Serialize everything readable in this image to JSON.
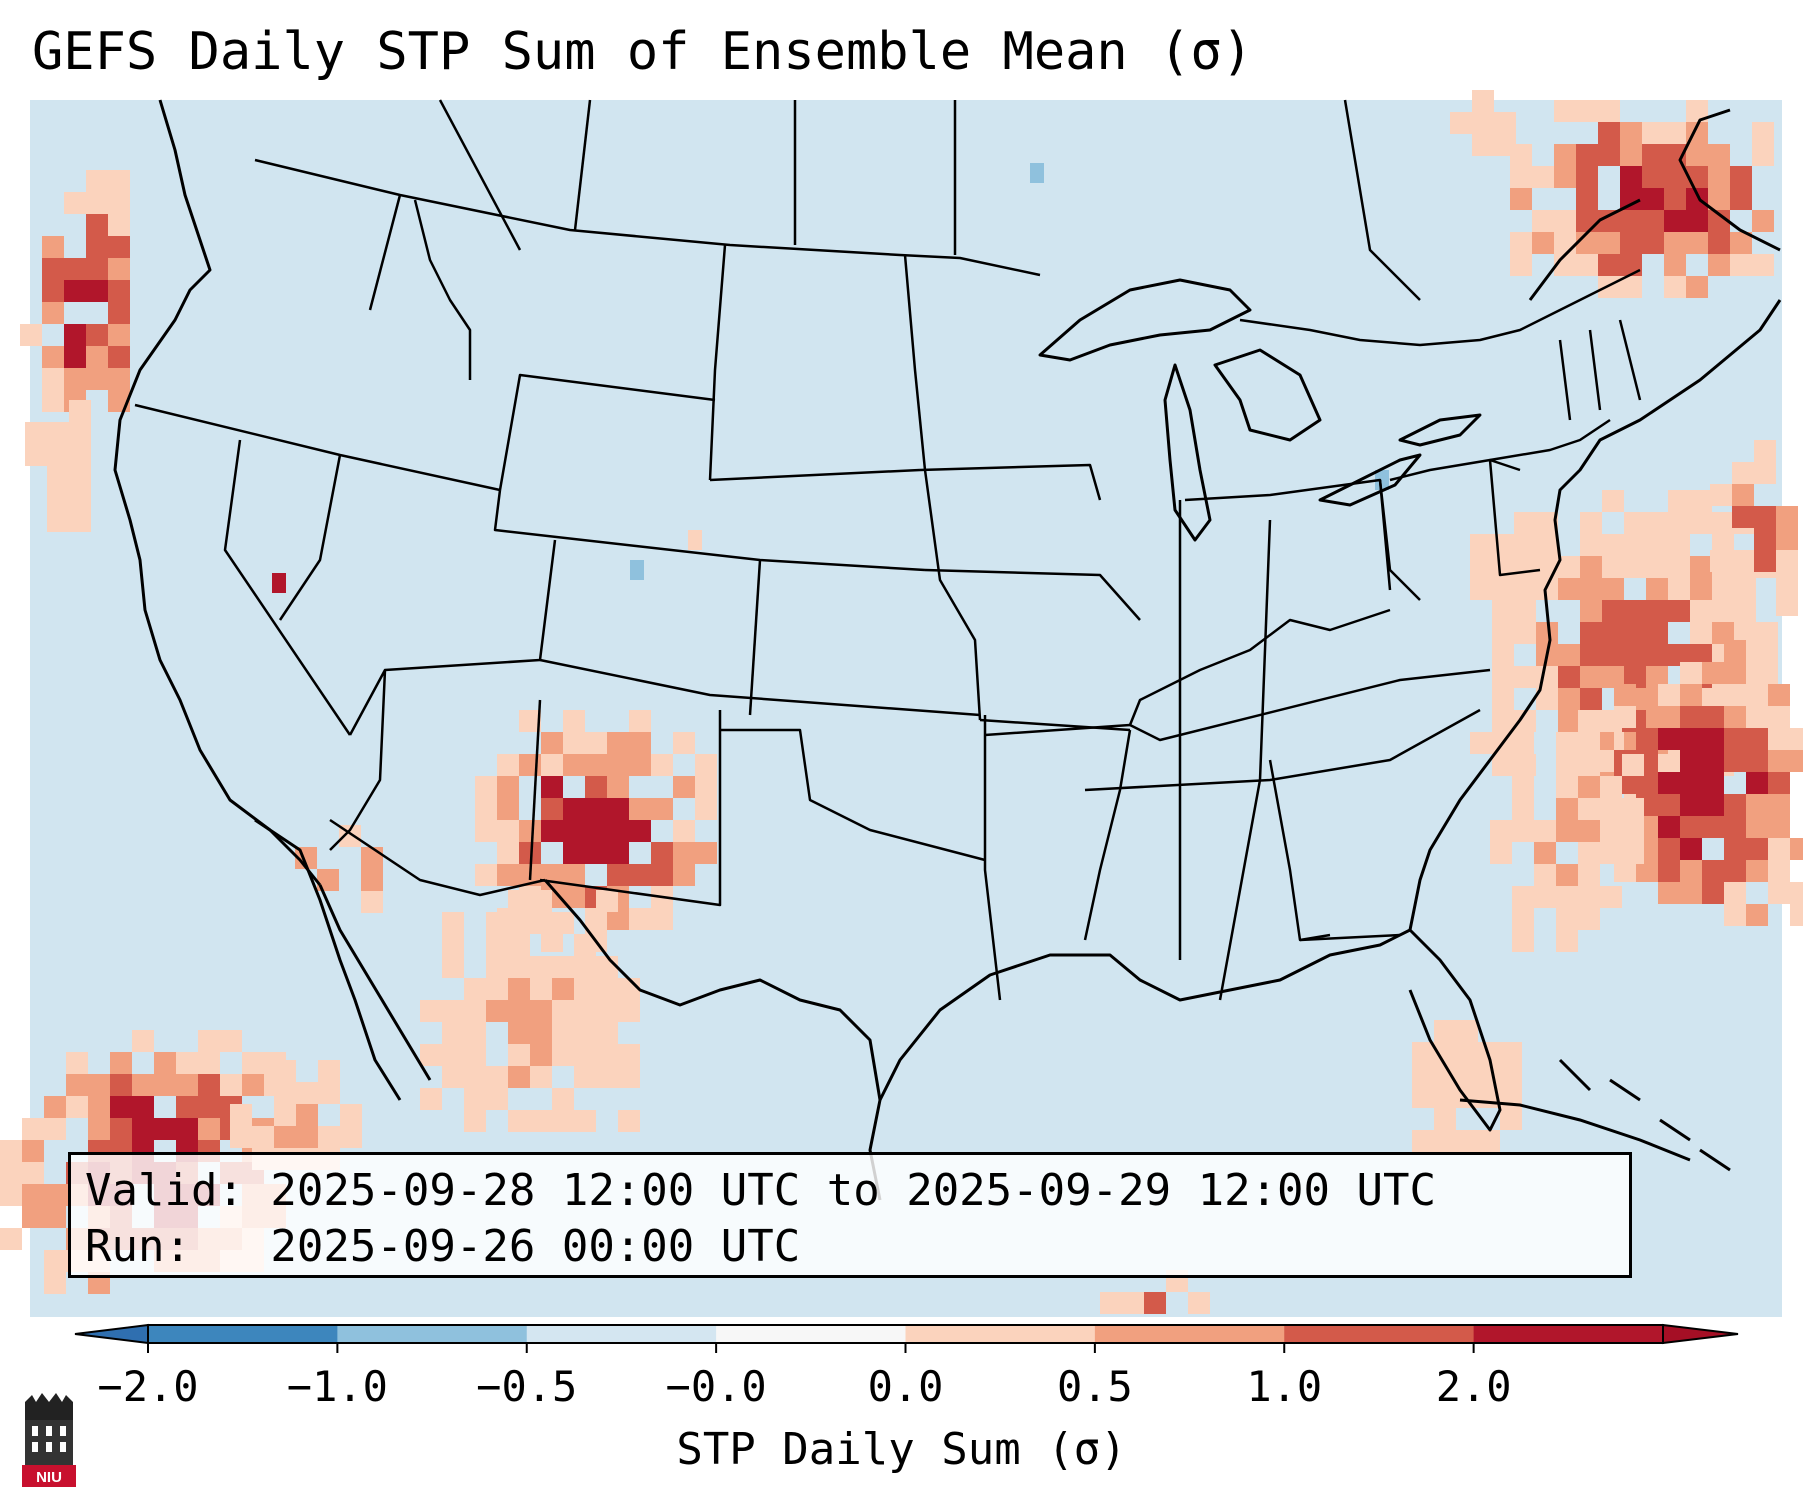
{
  "title": "GEFS Daily STP Sum of Ensemble Mean (σ)",
  "info": {
    "valid_line": "Valid: 2025-09-28 12:00 UTC to 2025-09-29 12:00 UTC",
    "run_line": "Run:   2025-09-26 00:00 UTC"
  },
  "colorbar": {
    "label": "STP Daily Sum (σ)",
    "ticks": [
      "−2.0",
      "−1.0",
      "−0.5",
      "−0.0",
      "0.0",
      "0.5",
      "1.0",
      "2.0"
    ],
    "colors": [
      "#3d86bd",
      "#8fc1dd",
      "#d4e6f1",
      "#f7f7f7",
      "#fbd3bd",
      "#f1a07f",
      "#d35a4a",
      "#b1162b"
    ],
    "under_color": "#2f6fb0",
    "over_color": "#a50f25"
  },
  "map": {
    "background_color": "#d1e5f0",
    "projection": "Lambert Conformal (CONUS)"
  },
  "logo": {
    "text": "NIU",
    "color": "#c8102e"
  }
}
